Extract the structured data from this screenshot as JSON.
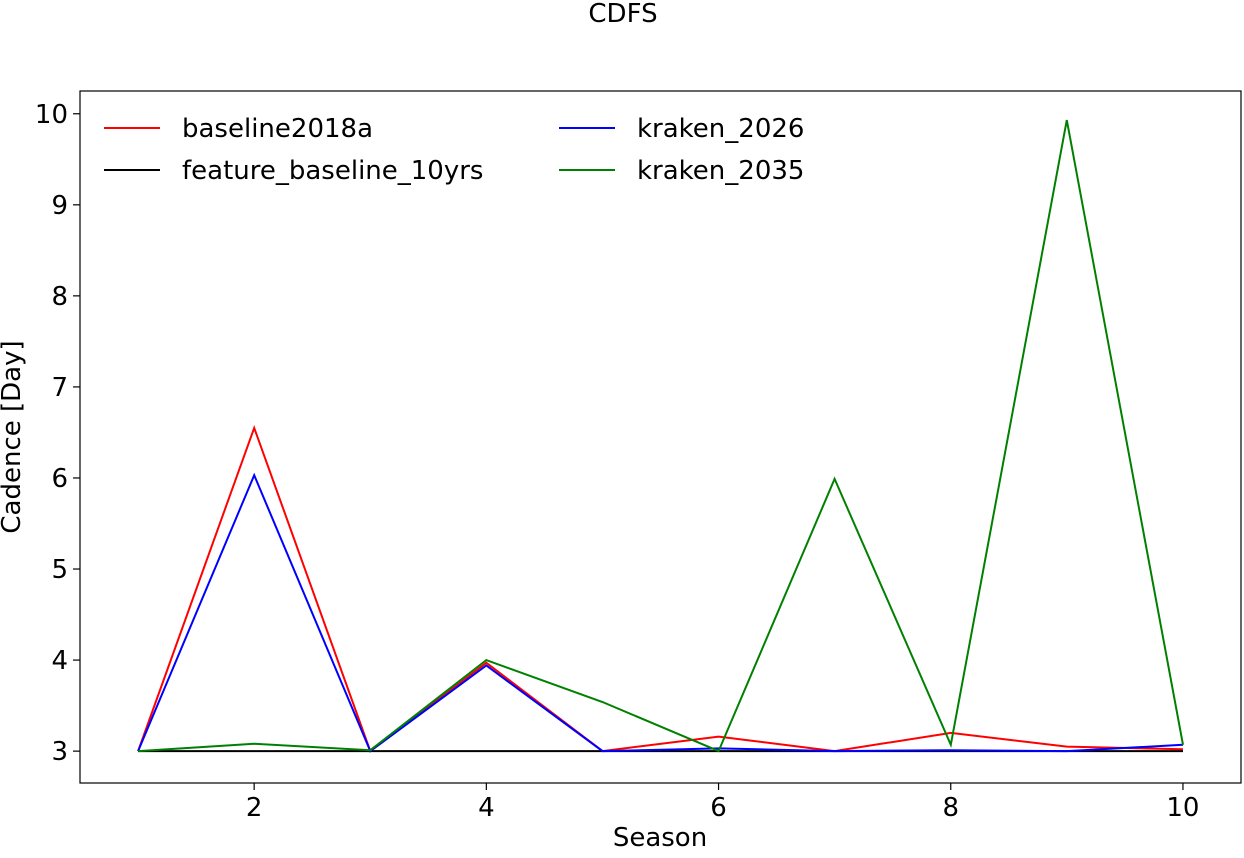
{
  "chart_data": {
    "type": "line",
    "title": "CDFS",
    "xlabel": "Season",
    "ylabel": "Cadence [Day]",
    "xlim": [
      0.5,
      10.5
    ],
    "ylim": [
      2.65,
      10.25
    ],
    "xticks": [
      2,
      4,
      6,
      8,
      10
    ],
    "yticks": [
      3,
      4,
      5,
      6,
      7,
      8,
      9,
      10
    ],
    "grid": false,
    "legend_position": "top-left",
    "legend_columns": 2,
    "x": [
      1,
      2,
      3,
      4,
      5,
      6,
      7,
      8,
      9,
      10
    ],
    "series": [
      {
        "name": "baseline2018a",
        "color": "#ff0000",
        "values": [
          3.0,
          6.55,
          3.0,
          3.97,
          3.0,
          3.16,
          3.0,
          3.2,
          3.05,
          3.02
        ]
      },
      {
        "name": "feature_baseline_10yrs",
        "color": "#000000",
        "values": [
          3.0,
          3.0,
          3.0,
          3.0,
          3.0,
          3.0,
          3.0,
          3.0,
          3.0,
          3.0
        ]
      },
      {
        "name": "kraken_2026",
        "color": "#0000ff",
        "values": [
          3.0,
          6.03,
          3.0,
          3.94,
          3.0,
          3.03,
          3.0,
          3.01,
          3.0,
          3.07
        ]
      },
      {
        "name": "kraken_2035",
        "color": "#008000",
        "values": [
          3.0,
          3.08,
          3.01,
          4.0,
          3.54,
          3.0,
          5.99,
          3.07,
          9.93,
          3.07
        ]
      }
    ]
  }
}
